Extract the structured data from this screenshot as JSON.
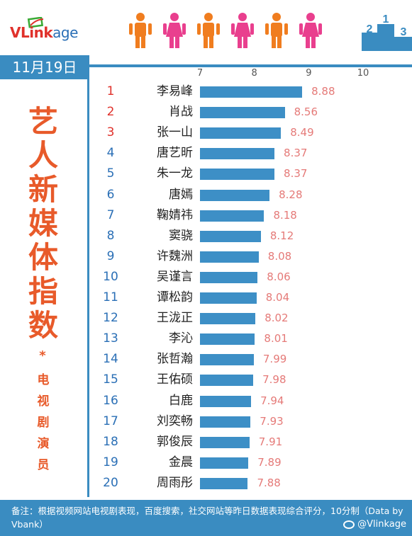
{
  "brand": {
    "v": "V",
    "link": "Link",
    "age": "age"
  },
  "date": "11月19日",
  "title": {
    "chars": [
      "艺",
      "人",
      "新",
      "媒",
      "体",
      "指",
      "数"
    ],
    "star": "*",
    "sub_chars": [
      "电",
      "视",
      "剧",
      "演",
      "员"
    ]
  },
  "colors": {
    "accent_blue": "#3a8cc1",
    "bar_blue": "#3d8fc6",
    "title_orange": "#e85a2a",
    "rank_red": "#e0312b",
    "rank_blue": "#2a6fb6",
    "value_pink": "#e57a78",
    "person_orange": "#f07d1f",
    "person_pink": "#e93f8e"
  },
  "icons": [
    "logo-swoosh-icon",
    "person-icon",
    "podium-icon",
    "weibo-icon"
  ],
  "chart_data": {
    "type": "bar",
    "orientation": "horizontal",
    "x_ticks": [
      "7",
      "8",
      "9",
      "10"
    ],
    "xlim": [
      7,
      10
    ],
    "categories": [
      "李易峰",
      "肖战",
      "张一山",
      "唐艺昕",
      "朱一龙",
      "唐嫣",
      "鞠婧祎",
      "窦骁",
      "许魏洲",
      "吴谨言",
      "谭松韵",
      "王泷正",
      "李沁",
      "张哲瀚",
      "王佑硕",
      "白鹿",
      "刘奕畅",
      "郭俊辰",
      "金晨",
      "周雨彤"
    ],
    "ranks": [
      "1",
      "2",
      "3",
      "4",
      "5",
      "6",
      "7",
      "8",
      "9",
      "10",
      "11",
      "12",
      "13",
      "14",
      "15",
      "16",
      "17",
      "18",
      "19",
      "20"
    ],
    "values": [
      8.88,
      8.56,
      8.49,
      8.37,
      8.37,
      8.28,
      8.18,
      8.12,
      8.08,
      8.06,
      8.04,
      8.02,
      8.01,
      7.99,
      7.98,
      7.94,
      7.93,
      7.91,
      7.89,
      7.88
    ],
    "value_labels": [
      "8.88",
      "8.56",
      "8.49",
      "8.37",
      "8.37",
      "8.28",
      "8.18",
      "8.12",
      "8.08",
      "8.06",
      "8.04",
      "8.02",
      "8.01",
      "7.99",
      "7.98",
      "7.94",
      "7.93",
      "7.91",
      "7.89",
      "7.88"
    ],
    "grid": false
  },
  "footer": {
    "note": "备注：根据视频网站电视剧表现，百度搜索，社交网站等昨日数据表现综合评分，10分制（Data by Vbank）",
    "weibo": "@Vlinkage"
  }
}
